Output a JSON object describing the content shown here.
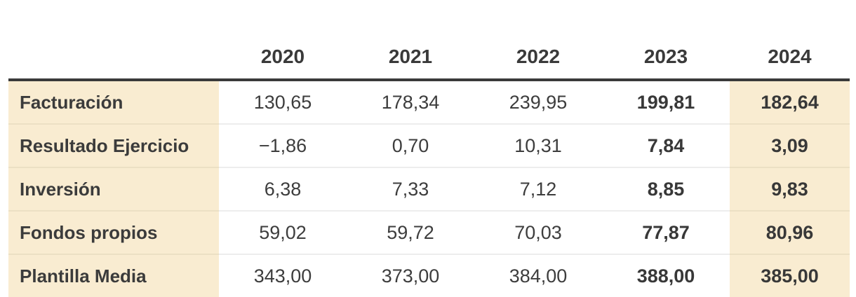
{
  "table": {
    "corner_label": "",
    "years": [
      "2020",
      "2021",
      "2022",
      "2023",
      "2024"
    ],
    "rows": [
      {
        "label": "Facturación",
        "values": [
          "130,65",
          "178,34",
          "239,95",
          "199,81",
          "182,64"
        ]
      },
      {
        "label": "Resultado Ejercicio",
        "values": [
          "−1,86",
          "0,70",
          "10,31",
          "7,84",
          "3,09"
        ]
      },
      {
        "label": "Inversión",
        "values": [
          "6,38",
          "7,33",
          "7,12",
          "8,85",
          "9,83"
        ]
      },
      {
        "label": "Fondos propios",
        "values": [
          "59,02",
          "59,72",
          "70,03",
          "77,87",
          "80,96"
        ]
      },
      {
        "label": "Plantilla Media",
        "values": [
          "343,00",
          "373,00",
          "384,00",
          "388,00",
          "385,00"
        ]
      }
    ]
  },
  "style": {
    "highlight_bg": "#f9ecd1",
    "header_rule_color": "#3a3a3a",
    "text_color": "#3d3d3d",
    "row_separator_on_white": "#ededed",
    "row_separator_on_beige": "#ece0c4"
  },
  "chart_data": {
    "type": "table",
    "columns": [
      "",
      "2020",
      "2021",
      "2022",
      "2023",
      "2024"
    ],
    "rows": [
      [
        "Facturación",
        130.65,
        178.34,
        239.95,
        199.81,
        182.64
      ],
      [
        "Resultado Ejercicio",
        -1.86,
        0.7,
        10.31,
        7.84,
        3.09
      ],
      [
        "Inversión",
        6.38,
        7.33,
        7.12,
        8.85,
        9.83
      ],
      [
        "Fondos propios",
        59.02,
        59.72,
        70.03,
        77.87,
        80.96
      ],
      [
        "Plantilla Media",
        343.0,
        373.0,
        384.0,
        388.0,
        385.0
      ]
    ],
    "notes": "Decimal-comma (Spanish) number formatting; 2023 and 2024 values bold; row-label column and 2024 column have beige highlight background"
  }
}
